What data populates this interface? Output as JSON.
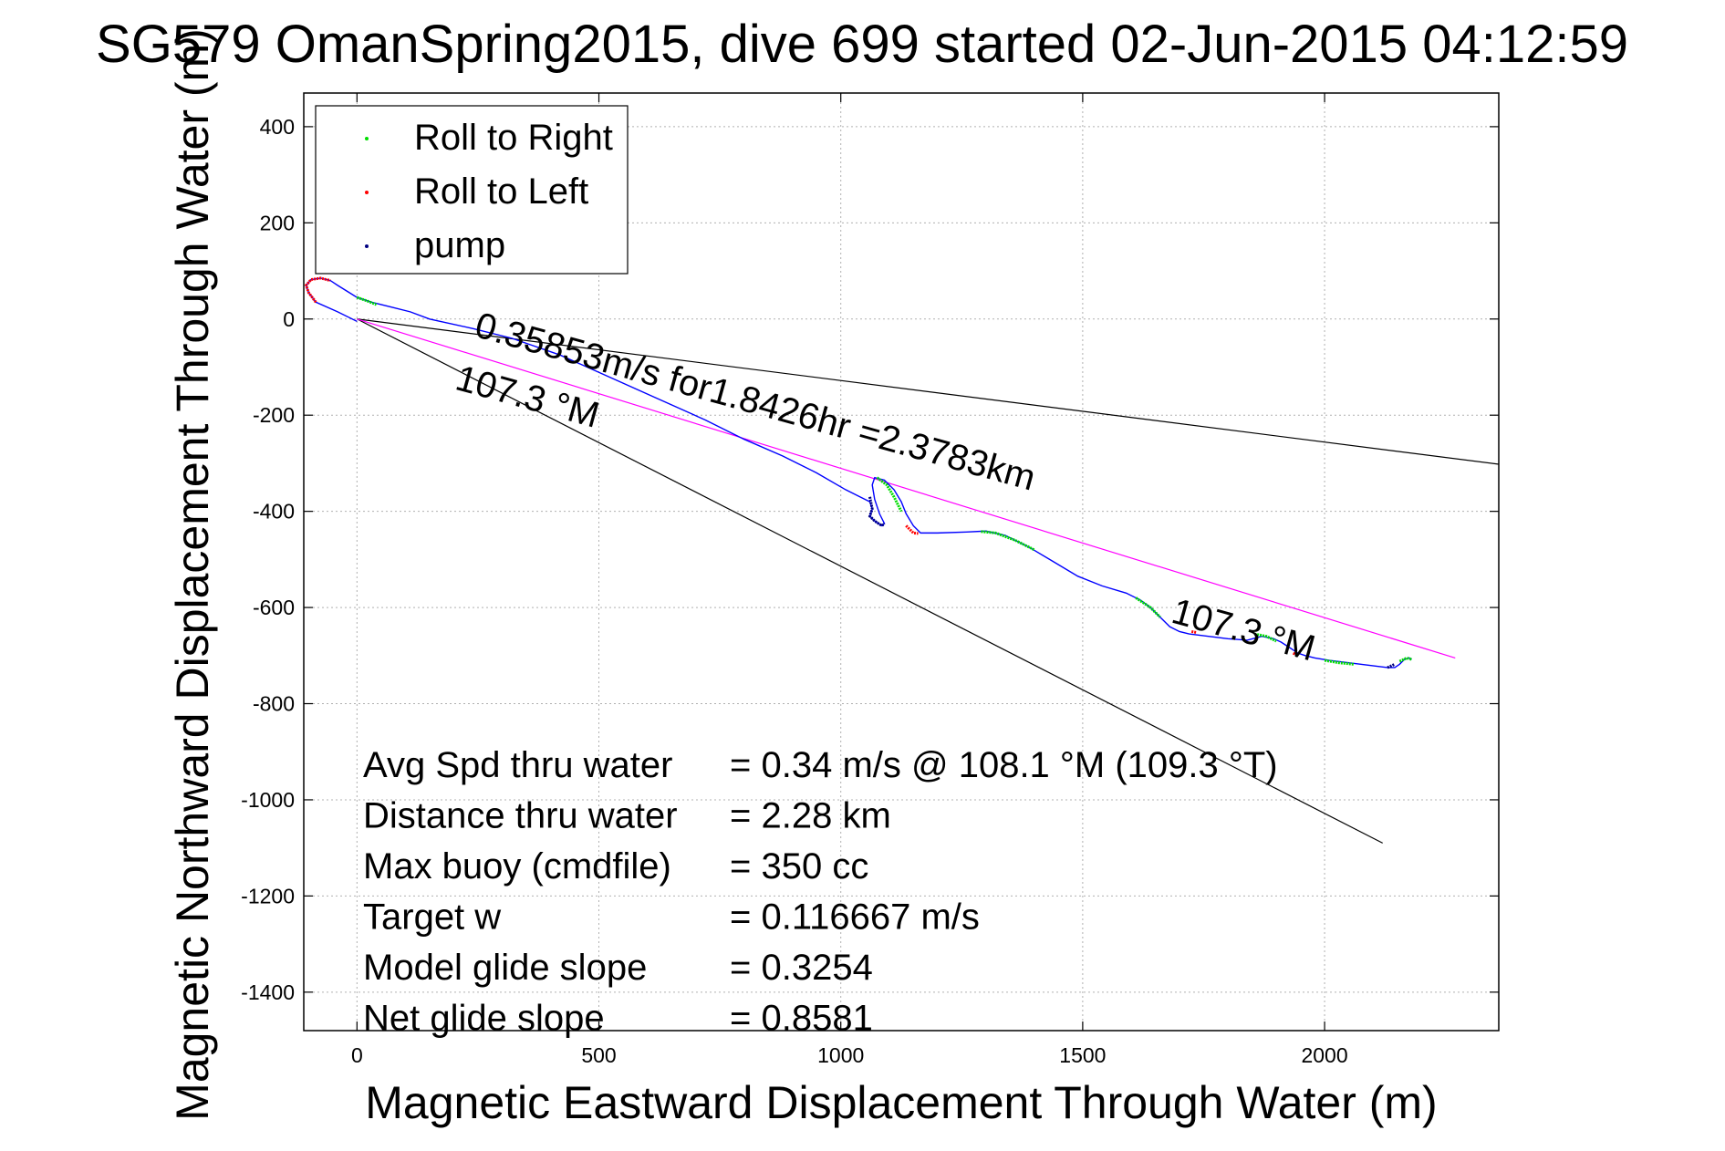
{
  "chart_data": {
    "type": "line",
    "title": "SG579 OmanSpring2015, dive 699 started 02-Jun-2015 04:12:59",
    "xlabel": "Magnetic Eastward Displacement Through Water (m)",
    "ylabel": "Magnetic Northward Displacement Through Water (m)",
    "xlim": [
      -110,
      2360
    ],
    "ylim": [
      -1480,
      470
    ],
    "xticks": [
      0,
      500,
      1000,
      1500,
      2000
    ],
    "yticks": [
      400,
      200,
      0,
      -200,
      -400,
      -600,
      -800,
      -1000,
      -1200,
      -1400
    ],
    "grid": true,
    "legend_position": "top-left",
    "legend": [
      {
        "label": "Roll to Right",
        "color": "#00dd00"
      },
      {
        "label": "Roll to Left",
        "color": "#ff0000"
      },
      {
        "label": "pump",
        "color": "#000080"
      }
    ],
    "track": {
      "color": "#0000ff",
      "x": [
        0,
        -40,
        -85,
        -100,
        -105,
        -95,
        -75,
        -55,
        -40,
        0,
        30,
        50,
        70,
        110,
        150,
        240,
        320,
        420,
        520,
        620,
        720,
        800,
        880,
        950,
        1010,
        1040,
        1060,
        1065,
        1060,
        1070,
        1085,
        1090,
        1080,
        1070,
        1065,
        1070,
        1090,
        1110,
        1125,
        1135,
        1150,
        1165,
        1200,
        1260,
        1300,
        1340,
        1390,
        1440,
        1490,
        1540,
        1590,
        1620,
        1640,
        1660,
        1680,
        1700,
        1720,
        1760,
        1800,
        1840,
        1870,
        1895,
        1910,
        1930,
        1945,
        1960,
        1980,
        2010,
        2050,
        2090,
        2130,
        2145,
        2155,
        2165,
        2175,
        2180
      ],
      "y": [
        -5,
        15,
        35,
        55,
        70,
        82,
        85,
        80,
        70,
        45,
        35,
        30,
        25,
        15,
        0,
        -20,
        -40,
        -75,
        -120,
        -165,
        -210,
        -250,
        -285,
        -320,
        -355,
        -370,
        -380,
        -395,
        -410,
        -420,
        -430,
        -425,
        -405,
        -375,
        -345,
        -330,
        -335,
        -355,
        -380,
        -405,
        -430,
        -445,
        -445,
        -443,
        -441,
        -450,
        -475,
        -505,
        -535,
        -555,
        -570,
        -585,
        -600,
        -620,
        -640,
        -650,
        -655,
        -660,
        -665,
        -668,
        -660,
        -665,
        -672,
        -685,
        -695,
        -700,
        -705,
        -710,
        -715,
        -720,
        -725,
        -725,
        -718,
        -708,
        -705,
        -708
      ]
    },
    "series": [
      {
        "name": "Roll to Right",
        "color": "#00dd00",
        "segments": [
          {
            "x": [
              0,
              20,
              40
            ],
            "y": [
              45,
              38,
              30
            ]
          },
          {
            "x": [
              1075,
              1095,
              1110,
              1125
            ],
            "y": [
              -330,
              -345,
              -370,
              -400
            ]
          },
          {
            "x": [
              1290,
              1320,
              1360,
              1400
            ],
            "y": [
              -442,
              -445,
              -460,
              -480
            ]
          },
          {
            "x": [
              1610,
              1640,
              1660
            ],
            "y": [
              -580,
              -600,
              -620
            ]
          },
          {
            "x": [
              1855,
              1880,
              1900
            ],
            "y": [
              -655,
              -660,
              -670
            ]
          },
          {
            "x": [
              2000,
              2030,
              2060
            ],
            "y": [
              -710,
              -715,
              -718
            ]
          },
          {
            "x": [
              2155,
              2170,
              2180
            ],
            "y": [
              -712,
              -705,
              -708
            ]
          }
        ]
      },
      {
        "name": "Roll to Left",
        "color": "#ff0000",
        "segments": [
          {
            "x": [
              -85,
              -100,
              -105,
              -95,
              -75,
              -55
            ],
            "y": [
              35,
              55,
              70,
              82,
              85,
              80
            ]
          },
          {
            "x": [
              1135,
              1150,
              1160
            ],
            "y": [
              -430,
              -445,
              -446
            ]
          },
          {
            "x": [
              1725,
              1735
            ],
            "y": [
              -650,
              -652
            ]
          },
          {
            "x": [
              1935,
              1945
            ],
            "y": [
              -695,
              -700
            ]
          }
        ]
      },
      {
        "name": "pump",
        "color": "#000080",
        "segments": [
          {
            "x": [
              1060,
              1065,
              1060,
              1070,
              1085,
              1090
            ],
            "y": [
              -370,
              -395,
              -410,
              -420,
              -430,
              -425
            ]
          },
          {
            "x": [
              2130,
              2145
            ],
            "y": [
              -725,
              -718
            ]
          }
        ]
      }
    ],
    "reference_lines": [
      {
        "color": "#000000",
        "x": [
          0,
          2360
        ],
        "y": [
          0,
          -302
        ]
      },
      {
        "color": "#000000",
        "x": [
          0,
          2120
        ],
        "y": [
          0,
          -1090
        ]
      },
      {
        "color": "#ff00ff",
        "x": [
          0,
          2270
        ],
        "y": [
          0,
          -705
        ]
      }
    ],
    "annotations": [
      {
        "text": "0.35853m/s for1.8426hr =2.3783km",
        "x": 240,
        "y": -35,
        "angle_deg": 15.5
      },
      {
        "text": "107.3 °M",
        "x": 200,
        "y": -145,
        "angle_deg": 15.5
      },
      {
        "text": "107.3 °M",
        "x": 1680,
        "y": -630,
        "angle_deg": 15.5
      }
    ],
    "stats": [
      {
        "label": "Avg Spd thru water",
        "value": "=  0.34 m/s @ 108.1 °M (109.3 °T)"
      },
      {
        "label": "Distance thru water",
        "value": "=  2.28 km"
      },
      {
        "label": "Max buoy (cmdfile)",
        "value": "= 350 cc"
      },
      {
        "label": "Target w",
        "value": "= 0.116667 m/s"
      },
      {
        "label": "Model glide slope",
        "value": "= 0.3254"
      },
      {
        "label": "Net glide slope",
        "value": "= 0.8581"
      }
    ]
  }
}
